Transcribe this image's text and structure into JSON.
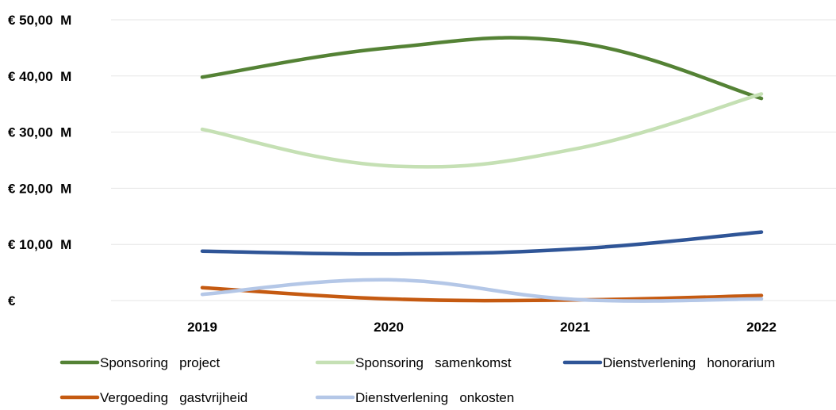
{
  "chart_data": {
    "type": "line",
    "title": "",
    "xlabel": "",
    "ylabel": "",
    "categories": [
      "2019",
      "2020",
      "2021",
      "2022"
    ],
    "y_ticks": [
      {
        "value": 0,
        "label": "€"
      },
      {
        "value": 10,
        "label": "€ 10,00  M"
      },
      {
        "value": 20,
        "label": "€ 20,00  M"
      },
      {
        "value": 30,
        "label": "€ 30,00  M"
      },
      {
        "value": 40,
        "label": "€ 40,00  M"
      },
      {
        "value": 50,
        "label": "€ 50,00  M"
      }
    ],
    "ylim": [
      0,
      50
    ],
    "y_unit": "M",
    "grid": true,
    "legend_position": "bottom",
    "smooth": true,
    "series": [
      {
        "name": "Sponsoring   project",
        "values": [
          39.8,
          45.0,
          46.0,
          36.0
        ],
        "color": "#548235"
      },
      {
        "name": "Sponsoring   samenkomst",
        "values": [
          30.5,
          24.0,
          27.0,
          36.8
        ],
        "color": "#c5e0b4"
      },
      {
        "name": "Dienstverlening   honorarium",
        "values": [
          8.8,
          8.3,
          9.2,
          12.2
        ],
        "color": "#2f5597"
      },
      {
        "name": "Vergoeding   gastvrijheid",
        "values": [
          2.3,
          0.3,
          0.1,
          0.9
        ],
        "color": "#c55a11"
      },
      {
        "name": "Dienstverlening   onkosten",
        "values": [
          1.1,
          3.7,
          0.2,
          0.3
        ],
        "color": "#b4c7e7"
      }
    ]
  }
}
